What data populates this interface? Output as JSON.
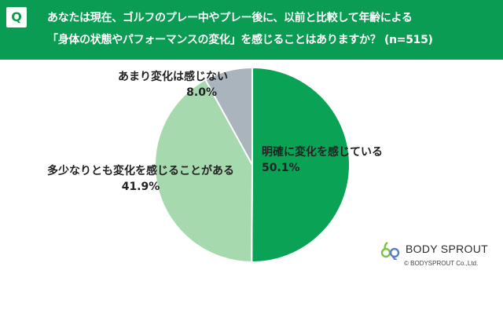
{
  "header": {
    "badge": "Q",
    "line1": "あなたは現在、ゴルフのプレー中やプレー後に、以前と比較して年齢による",
    "line2": "「身体の状態やパフォーマンスの変化」を感じることはありますか？ (n=515)"
  },
  "colors": {
    "header_bg": "#0a9c52",
    "slice_clear": "#0aa356",
    "slice_somewhat": "#a6d9ae",
    "slice_none": "#aab4bc"
  },
  "chart_data": {
    "type": "pie",
    "title": "あなたは現在、ゴルフのプレー中やプレー後に、以前と比較して年齢による「身体の状態やパフォーマンスの変化」を感じることはありますか？ (n=515)",
    "slices": [
      {
        "label": "明確に変化を感じている",
        "value": 50.1,
        "value_label": "50.1%",
        "color": "#0aa356"
      },
      {
        "label": "多少なりとも変化を感じることがある",
        "value": 41.9,
        "value_label": "41.9%",
        "color": "#a6d9ae"
      },
      {
        "label": "あまり変化は感じない",
        "value": 8.0,
        "value_label": "8.0%",
        "color": "#aab4bc"
      }
    ],
    "start_angle": "12 o'clock",
    "direction": "clockwise"
  },
  "logo": {
    "name": "BODY SPROUT",
    "copyright": "© BODYSPROUT Co.,Ltd."
  }
}
